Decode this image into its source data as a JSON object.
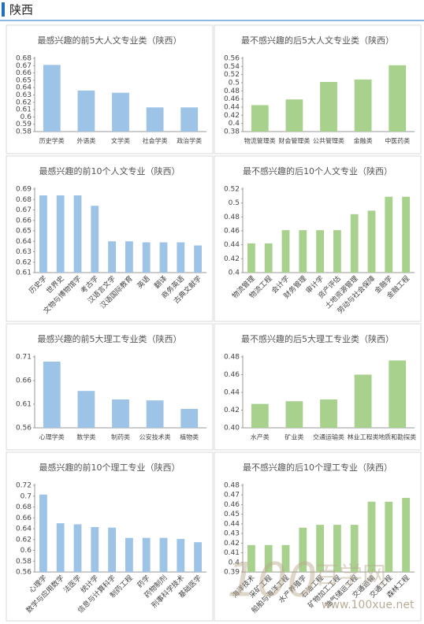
{
  "header": {
    "title": "陕西"
  },
  "watermark": {
    "logo": "100",
    "name": "百学网",
    "url": "www.100xue.net"
  },
  "chart_data": [
    {
      "type": "bar",
      "title": "最感兴趣的前5大人文专业类（陕西）",
      "color": "#9dc3e6",
      "categories": [
        "历史学类",
        "外语类",
        "文学类",
        "社会学类",
        "政治学类"
      ],
      "values": [
        0.671,
        0.636,
        0.633,
        0.613,
        0.613
      ],
      "ylim": [
        0.58,
        0.68
      ],
      "yticks": [
        0.58,
        0.59,
        0.6,
        0.61,
        0.62,
        0.63,
        0.64,
        0.65,
        0.66,
        0.67,
        0.68
      ]
    },
    {
      "type": "bar",
      "title": "最不感兴趣的后5大人文专业类（陕西）",
      "color": "#a9d18e",
      "categories": [
        "物流管理类",
        "财会管理类",
        "公共管理类",
        "金融类",
        "中医药类"
      ],
      "values": [
        0.445,
        0.459,
        0.502,
        0.508,
        0.543
      ],
      "ylim": [
        0.38,
        0.56
      ],
      "yticks": [
        0.38,
        0.4,
        0.42,
        0.44,
        0.46,
        0.48,
        0.5,
        0.52,
        0.54,
        0.56
      ]
    },
    {
      "type": "bar",
      "title": "最感兴趣的前10个人文专业（陕西）",
      "color": "#9dc3e6",
      "categories": [
        "历史学",
        "世界史",
        "文物与博物馆学",
        "考古学",
        "汉语言文学",
        "汉语国际教育",
        "英语",
        "翻译",
        "商务英语",
        "古典文献学"
      ],
      "values": [
        0.684,
        0.684,
        0.684,
        0.674,
        0.64,
        0.64,
        0.639,
        0.639,
        0.639,
        0.636
      ],
      "ylim": [
        0.61,
        0.69
      ],
      "yticks": [
        0.61,
        0.62,
        0.63,
        0.64,
        0.65,
        0.66,
        0.67,
        0.68,
        0.69
      ]
    },
    {
      "type": "bar",
      "title": "最不感兴趣的后10个人文专业（陕西）",
      "color": "#a9d18e",
      "categories": [
        "物流管理",
        "物流工程",
        "会计学",
        "财务管理",
        "审计学",
        "资产评估",
        "土地资源管理",
        "劳动与社会保障",
        "金融学",
        "金融工程"
      ],
      "values": [
        0.442,
        0.442,
        0.461,
        0.461,
        0.461,
        0.461,
        0.484,
        0.489,
        0.509,
        0.509
      ],
      "ylim": [
        0.4,
        0.52
      ],
      "yticks": [
        0.4,
        0.42,
        0.44,
        0.46,
        0.48,
        0.5,
        0.52
      ]
    },
    {
      "type": "bar",
      "title": "最感兴趣的前5大理工专业类（陕西）",
      "color": "#9dc3e6",
      "categories": [
        "心理学类",
        "数学类",
        "制药类",
        "公安技术类",
        "植物类"
      ],
      "values": [
        0.7,
        0.638,
        0.62,
        0.618,
        0.6
      ],
      "ylim": [
        0.56,
        0.71
      ],
      "yticks": [
        0.56,
        0.61,
        0.66,
        0.71
      ]
    },
    {
      "type": "bar",
      "title": "最不感兴趣的后5大理工专业类（陕西）",
      "color": "#a9d18e",
      "categories": [
        "水产类",
        "矿业类",
        "交通运输类",
        "林业工程类",
        "地质和勘探类"
      ],
      "values": [
        0.427,
        0.43,
        0.432,
        0.46,
        0.476
      ],
      "ylim": [
        0.4,
        0.48
      ],
      "yticks": [
        {
          "value": 0.4,
          "label": "0.40"
        },
        0.42,
        0.44,
        0.46,
        0.48
      ]
    },
    {
      "type": "bar",
      "title": "最感兴趣的前10个理工专业（陕西）",
      "color": "#9dc3e6",
      "categories": [
        "心理学",
        "数学与应用数学",
        "法医学",
        "统计学",
        "信息与计算科学",
        "制药工程",
        "药学",
        "药物制剂",
        "刑事科学技术",
        "基础医学"
      ],
      "values": [
        0.703,
        0.65,
        0.648,
        0.643,
        0.642,
        0.623,
        0.623,
        0.623,
        0.621,
        0.615
      ],
      "ylim": [
        0.56,
        0.72
      ],
      "yticks": [
        0.56,
        0.58,
        0.6,
        0.62,
        0.64,
        0.66,
        0.68,
        0.7,
        0.72
      ]
    },
    {
      "type": "bar",
      "title": "最不感兴趣的后10个理工专业（陕西）",
      "color": "#a9d18e",
      "categories": [
        "海洋技术",
        "采矿工程",
        "船舶与海洋工程",
        "水产养殖学",
        "石油工程",
        "矿物加工工程",
        "油气储运工程",
        "交通运输",
        "交通工程",
        "森林工程"
      ],
      "values": [
        0.418,
        0.418,
        0.418,
        0.436,
        0.439,
        0.439,
        0.439,
        0.463,
        0.463,
        0.467
      ],
      "ylim": [
        0.39,
        0.48
      ],
      "yticks": [
        0.39,
        0.4,
        0.41,
        0.42,
        0.43,
        0.44,
        0.45,
        0.46,
        0.47,
        0.48
      ]
    }
  ]
}
